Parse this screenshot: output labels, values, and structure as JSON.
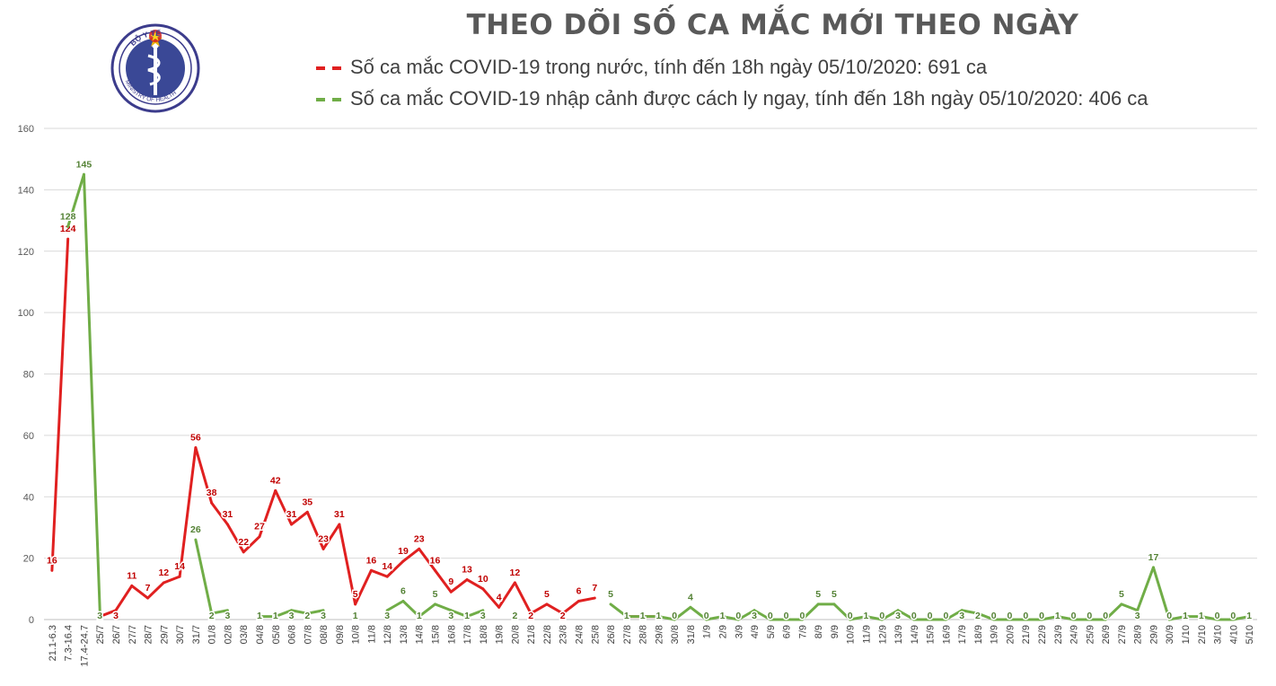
{
  "logo": {
    "top_text": "BỘ Y TẾ",
    "bottom_text": "MINISTRY OF HEALTH"
  },
  "chart_data": {
    "type": "line",
    "title": "THEO DÕI SỐ CA MẮC MỚI THEO NGÀY",
    "categories": [
      "21.1-6.3",
      "7.3-16.4",
      "17.4-24.7",
      "25/7",
      "26/7",
      "27/7",
      "28/7",
      "29/7",
      "30/7",
      "31/7",
      "01/8",
      "02/8",
      "03/8",
      "04/8",
      "05/8",
      "06/8",
      "07/8",
      "08/8",
      "09/8",
      "10/8",
      "11/8",
      "12/8",
      "13/8",
      "14/8",
      "15/8",
      "16/8",
      "17/8",
      "18/8",
      "19/8",
      "20/8",
      "21/8",
      "22/8",
      "23/8",
      "24/8",
      "25/8",
      "26/8",
      "27/8",
      "28/8",
      "29/8",
      "30/8",
      "31/8",
      "1/9",
      "2/9",
      "3/9",
      "4/9",
      "5/9",
      "6/9",
      "7/9",
      "8/9",
      "9/9",
      "10/9",
      "11/9",
      "12/9",
      "13/9",
      "14/9",
      "15/9",
      "16/9",
      "17/9",
      "18/9",
      "19/9",
      "20/9",
      "21/9",
      "22/9",
      "23/9",
      "24/9",
      "25/9",
      "26/9",
      "27/9",
      "28/9",
      "29/9",
      "30/9",
      "1/10",
      "2/10",
      "3/10",
      "4/10",
      "5/10"
    ],
    "series": [
      {
        "name": "Số ca mắc COVID-19 trong nước, tính đến 18h ngày 05/10/2020: 691 ca",
        "color": "#e02020",
        "label_color": "#c00000",
        "values": [
          16,
          124,
          null,
          1,
          3,
          11,
          7,
          12,
          14,
          56,
          38,
          31,
          22,
          27,
          42,
          31,
          35,
          23,
          31,
          5,
          16,
          14,
          19,
          23,
          16,
          9,
          13,
          10,
          4,
          12,
          2,
          5,
          2,
          6,
          7,
          null,
          1,
          1,
          1,
          null,
          null,
          null,
          1,
          null,
          null,
          null,
          null,
          null,
          null,
          null,
          null,
          null,
          null,
          null,
          null,
          null,
          null,
          null,
          null,
          null,
          null,
          null,
          null,
          null,
          null,
          null,
          null,
          null,
          null,
          null,
          null,
          null,
          null,
          null,
          null,
          null
        ]
      },
      {
        "name": "Số ca mắc COVID-19 nhập cảnh được cách ly ngay, tính đến 18h ngày 05/10/2020: 406 ca",
        "color": "#70ad47",
        "label_color": "#548235",
        "values": [
          null,
          128,
          145,
          3,
          null,
          null,
          null,
          null,
          null,
          26,
          2,
          3,
          null,
          1,
          1,
          3,
          2,
          3,
          null,
          1,
          null,
          3,
          6,
          1,
          5,
          3,
          1,
          3,
          null,
          2,
          null,
          null,
          null,
          null,
          null,
          5,
          1,
          1,
          1,
          0,
          4,
          0,
          1,
          0,
          3,
          0,
          0,
          0,
          5,
          5,
          0,
          1,
          0,
          3,
          0,
          0,
          0,
          3,
          2,
          0,
          0,
          0,
          0,
          1,
          0,
          0,
          0,
          5,
          3,
          17,
          0,
          1,
          1,
          0,
          0,
          1
        ]
      }
    ],
    "yticks": [
      "0",
      "20",
      "40",
      "60",
      "80",
      "100",
      "120",
      "140",
      "160"
    ],
    "ylim": [
      0,
      160
    ],
    "grid": true,
    "legend_position": "top"
  }
}
